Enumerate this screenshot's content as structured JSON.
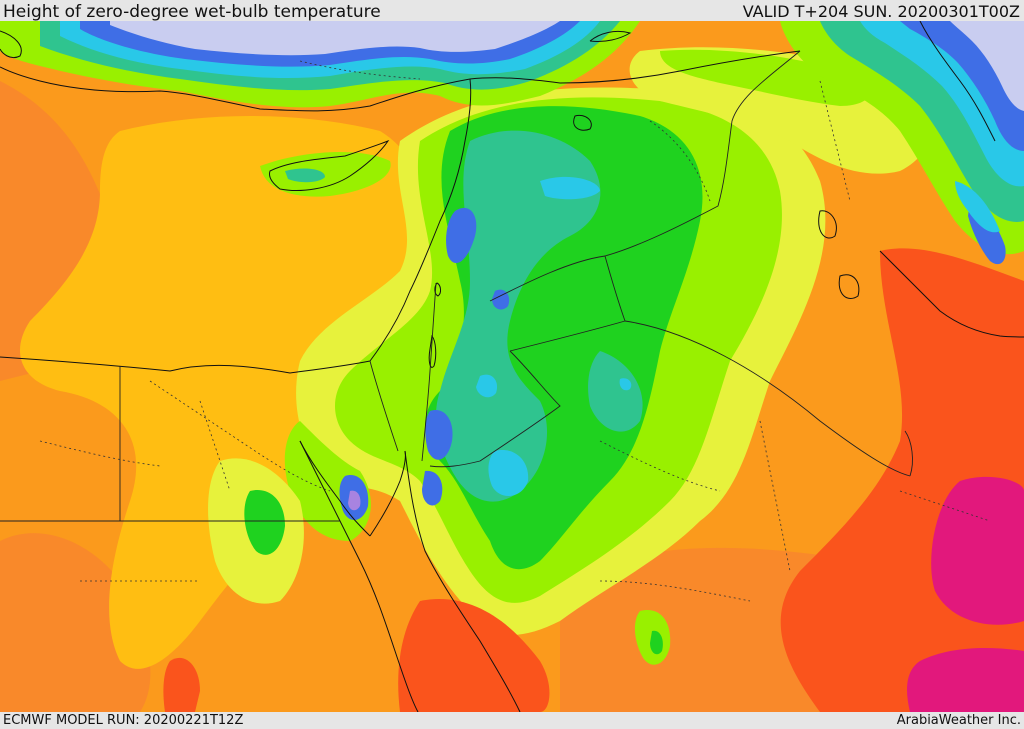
{
  "header": {
    "title": "Height of zero-degree wet-bulb temperature",
    "valid": "VALID T+204 SUN. 20200301T00Z"
  },
  "footer": {
    "model_run": "ECMWF MODEL RUN: 20200221T12Z",
    "credit": "ArabiaWeather Inc."
  },
  "palette": {
    "sea_lavender": "#c9cdf0",
    "blue": "#3f6ee6",
    "cyan": "#29c8e8",
    "teal": "#2fc48f",
    "green": "#1fd21f",
    "lime": "#99f000",
    "yellow": "#e7f23c",
    "orange_light": "#ffbe12",
    "orange": "#fb9a1c",
    "orange_deep": "#f9892a",
    "red_orange": "#fa541c",
    "magenta": "#e2187c",
    "purple": "#a883e0"
  }
}
